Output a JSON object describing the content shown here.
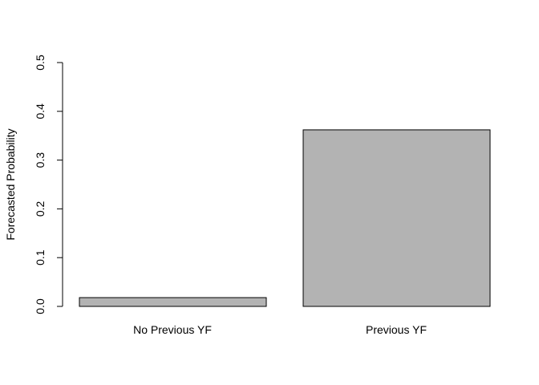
{
  "chart_data": {
    "type": "bar",
    "title": "",
    "xlabel": "",
    "ylabel": "Forecasted Probability",
    "categories": [
      "No Previous YF",
      "Previous YF"
    ],
    "values": [
      0.018,
      0.362
    ],
    "ylim": [
      0,
      0.5
    ],
    "yticks": [
      "0.0",
      "0.1",
      "0.2",
      "0.3",
      "0.4",
      "0.5"
    ],
    "bar_color": "#b3b3b3",
    "bar_border_color": "#000000",
    "grid": false,
    "legend": "none"
  }
}
